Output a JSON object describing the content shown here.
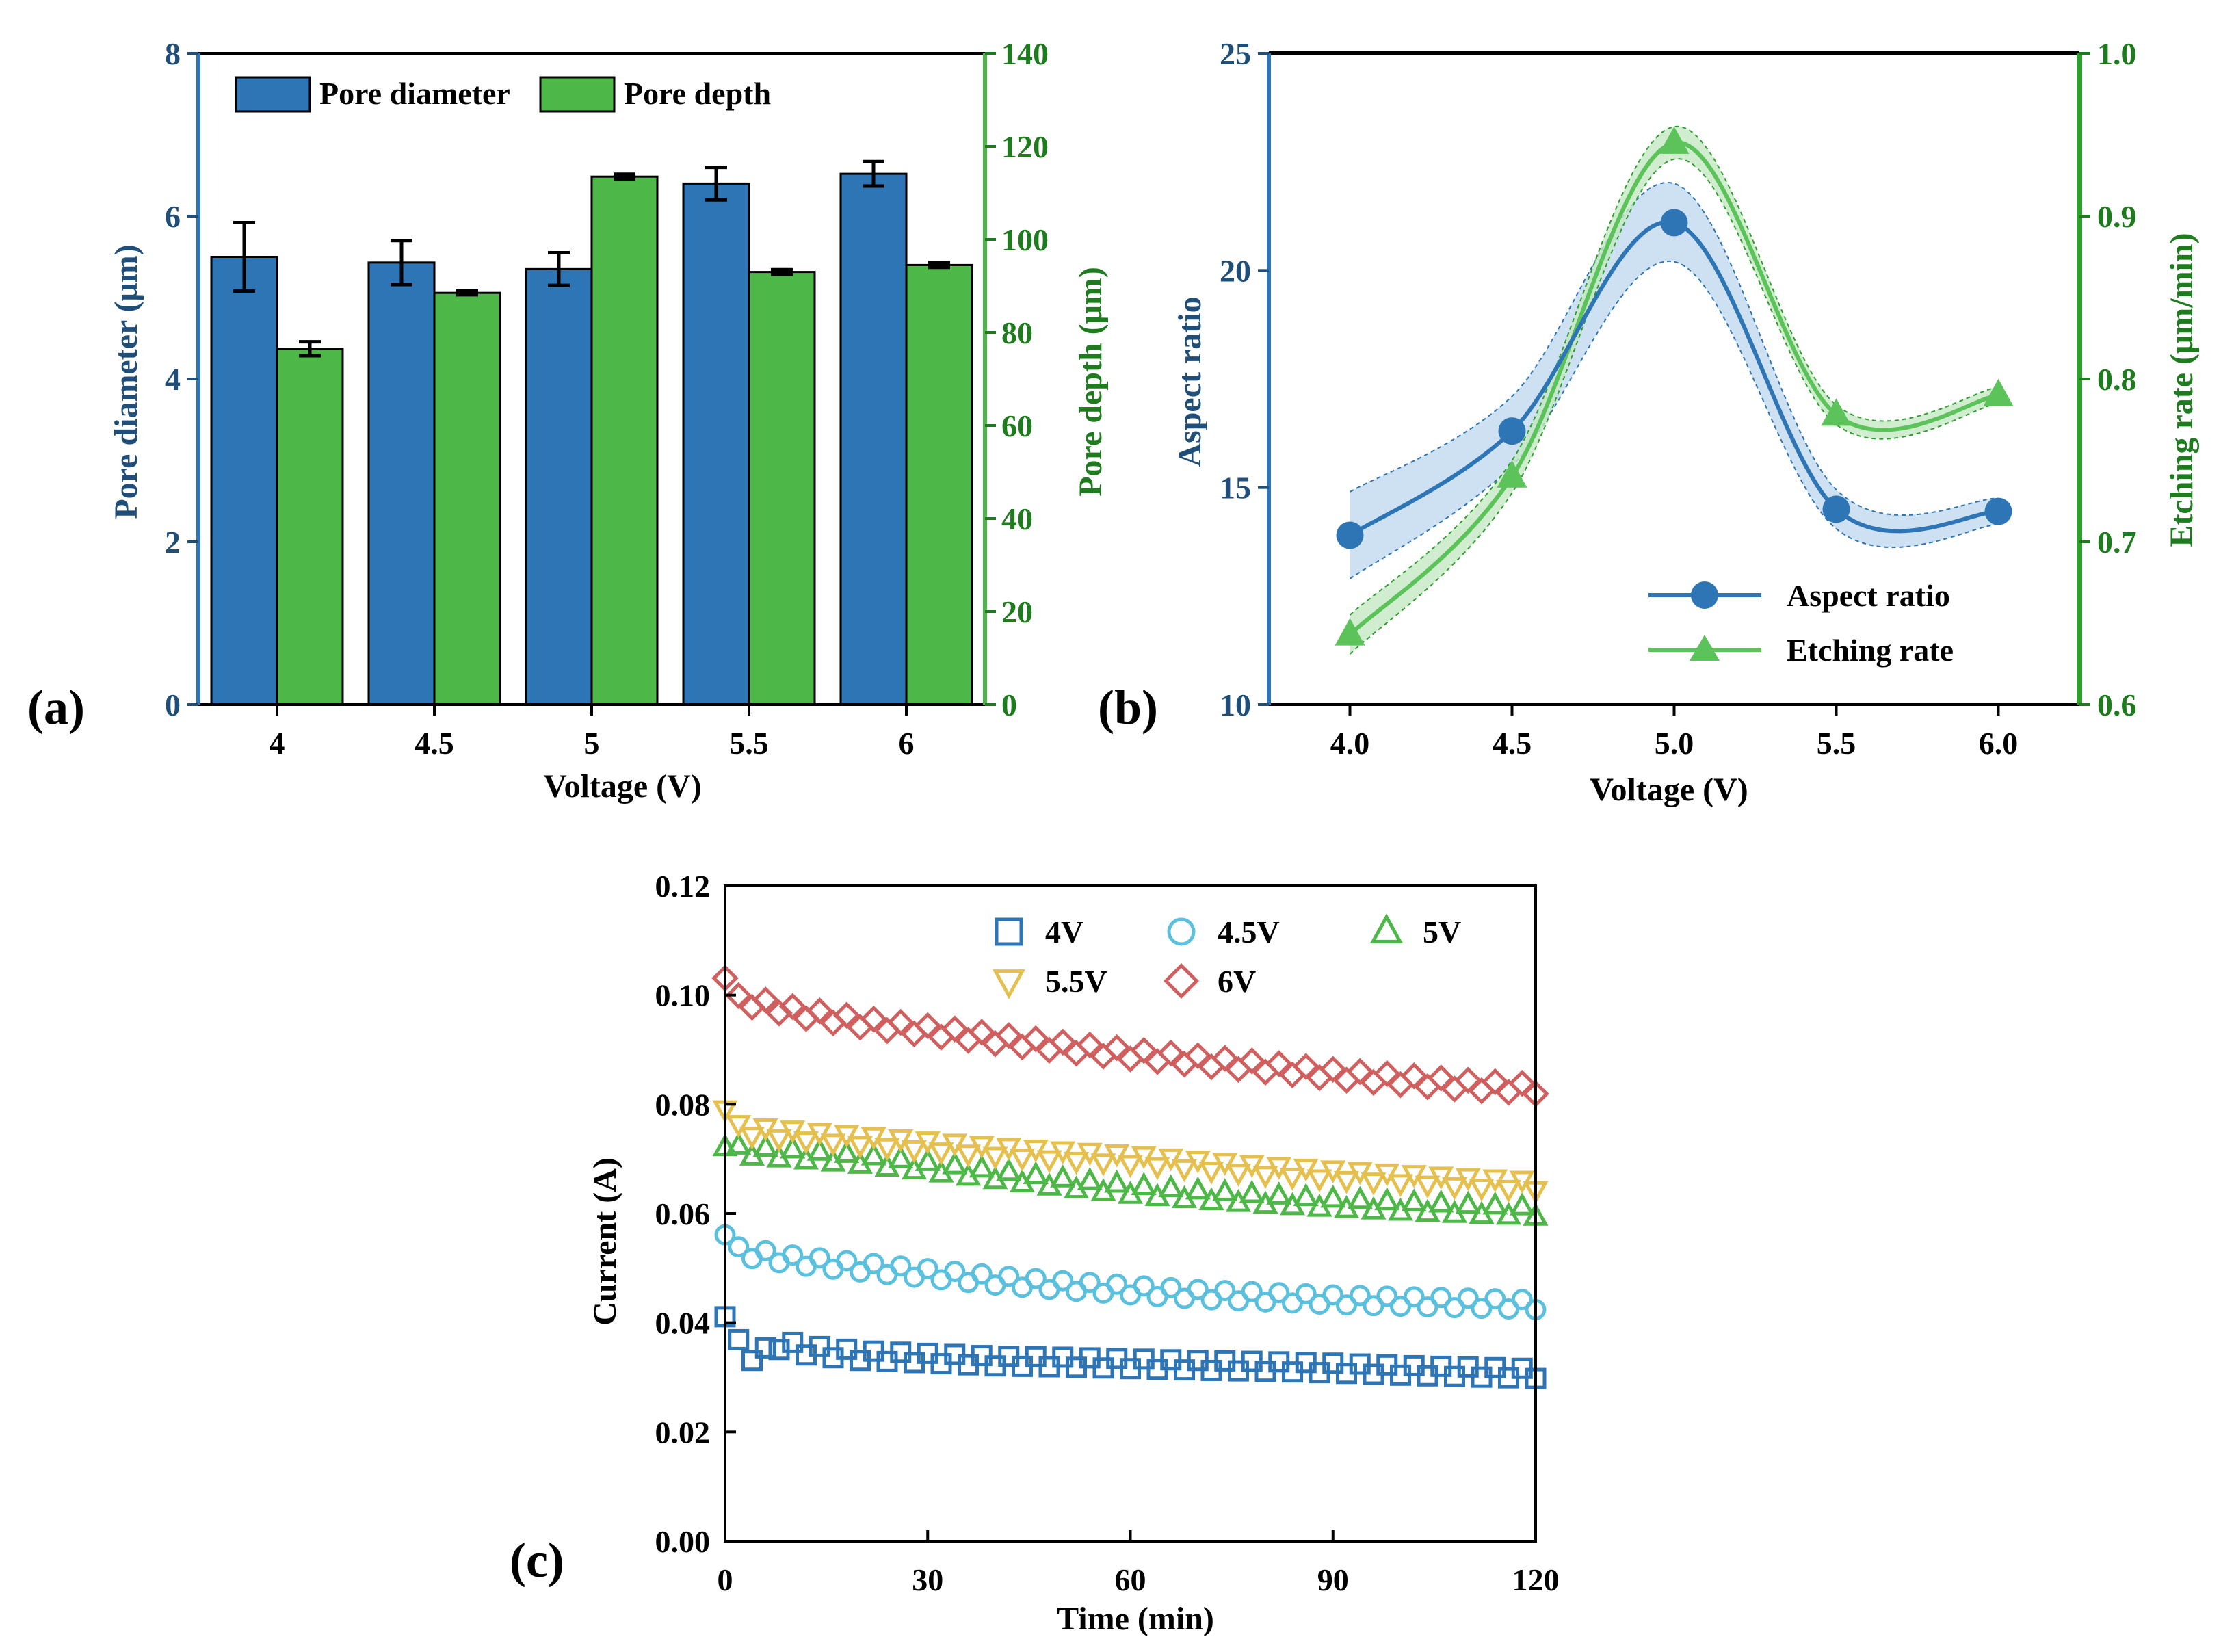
{
  "colors": {
    "blue": "#2e75b6",
    "green": "#4db848",
    "darkgreen": "#1e7b1e",
    "navy": "#1f4e79",
    "lightblue": "#5bc0de",
    "yellow": "#e5c04f",
    "red": "#d06060",
    "black": "#000000"
  },
  "chart_data": [
    {
      "panel_label": "(a)",
      "type": "bar",
      "title": "",
      "xlabel": "Voltage (V)",
      "ylabel": "Pore diameter (μm)",
      "y2label": "Pore depth (μm)",
      "categories": [
        "4",
        "4.5",
        "5",
        "5.5",
        "6"
      ],
      "ylim": [
        0,
        8
      ],
      "y2lim": [
        0,
        140
      ],
      "yticks": [
        "0",
        "2",
        "4",
        "6",
        "8"
      ],
      "y2ticks": [
        "0",
        "20",
        "40",
        "60",
        "80",
        "100",
        "120",
        "140"
      ],
      "legend_position": "top-left",
      "series": [
        {
          "name": "Pore diameter",
          "axis": "left",
          "values": [
            5.5,
            5.43,
            5.35,
            6.4,
            6.52
          ],
          "errors": [
            0.42,
            0.27,
            0.2,
            0.2,
            0.15
          ]
        },
        {
          "name": "Pore depth",
          "axis": "right",
          "values": [
            76.5,
            88.5,
            113.5,
            93,
            94.5
          ],
          "errors": [
            1.5,
            0.4,
            0.5,
            0.5,
            0.5
          ]
        }
      ]
    },
    {
      "panel_label": "(b)",
      "type": "line",
      "title": "",
      "xlabel": "Voltage (V)",
      "ylabel": "Aspect ratio",
      "y2label": "Etching rate (μm/min)",
      "x": [
        4.0,
        4.5,
        5.0,
        5.5,
        6.0
      ],
      "xticks": [
        "4.0",
        "4.5",
        "5.0",
        "5.5",
        "6.0"
      ],
      "ylim": [
        10,
        25
      ],
      "y2lim": [
        0.6,
        1.0
      ],
      "yticks": [
        "10",
        "15",
        "20",
        "25"
      ],
      "y2ticks": [
        "0.6",
        "0.7",
        "0.8",
        "0.9",
        "1.0"
      ],
      "legend_position": "bottom-right",
      "series": [
        {
          "name": "Aspect ratio",
          "axis": "left",
          "values": [
            13.9,
            16.3,
            21.1,
            14.5,
            14.45
          ]
        },
        {
          "name": "Etching rate",
          "axis": "right",
          "values": [
            0.643,
            0.74,
            0.945,
            0.778,
            0.79
          ]
        }
      ]
    },
    {
      "panel_label": "(c)",
      "type": "scatter",
      "title": "",
      "xlabel": "Time (min)",
      "ylabel": "Current (A)",
      "xlim": [
        0,
        120
      ],
      "ylim": [
        0,
        0.12
      ],
      "xticks": [
        "0",
        "30",
        "60",
        "90",
        "120"
      ],
      "yticks": [
        "0.00",
        "0.02",
        "0.04",
        "0.06",
        "0.08",
        "0.10",
        "0.12"
      ],
      "legend_position": "top-right",
      "series": [
        {
          "name": "4V",
          "x": [
            0,
            2,
            4,
            6,
            8,
            12,
            20,
            30,
            40,
            50,
            60,
            70,
            80,
            90,
            100,
            110,
            120
          ],
          "values": [
            0.042,
            0.036,
            0.034,
            0.0345,
            0.036,
            0.035,
            0.034,
            0.0335,
            0.033,
            0.0328,
            0.0325,
            0.0322,
            0.032,
            0.0317,
            0.0313,
            0.031,
            0.0307
          ]
        },
        {
          "name": "4.5V",
          "x": [
            0,
            2,
            5,
            10,
            20,
            30,
            40,
            50,
            60,
            70,
            80,
            90,
            100,
            110,
            120
          ],
          "values": [
            0.057,
            0.053,
            0.0525,
            0.0515,
            0.0502,
            0.049,
            0.0478,
            0.0468,
            0.046,
            0.0452,
            0.0447,
            0.0442,
            0.0439,
            0.0436,
            0.0433
          ]
        },
        {
          "name": "5V",
          "x": [
            0,
            2,
            5,
            10,
            20,
            30,
            40,
            50,
            60,
            70,
            80,
            90,
            100,
            110,
            120
          ],
          "values": [
            0.073,
            0.0715,
            0.0712,
            0.0708,
            0.0698,
            0.0685,
            0.067,
            0.0655,
            0.0643,
            0.0633,
            0.0625,
            0.0618,
            0.0612,
            0.0607,
            0.0603
          ]
        },
        {
          "name": "5.5V",
          "x": [
            0,
            2,
            5,
            10,
            20,
            30,
            40,
            50,
            60,
            70,
            80,
            90,
            100,
            110,
            120
          ],
          "values": [
            0.08,
            0.0755,
            0.075,
            0.0745,
            0.0735,
            0.0725,
            0.0715,
            0.0707,
            0.07,
            0.069,
            0.068,
            0.0672,
            0.0665,
            0.0658,
            0.0652
          ]
        },
        {
          "name": "6V",
          "x": [
            0,
            2,
            5,
            10,
            20,
            30,
            40,
            50,
            60,
            70,
            80,
            90,
            100,
            110,
            120
          ],
          "values": [
            0.104,
            0.099,
            0.0985,
            0.097,
            0.095,
            0.0935,
            0.092,
            0.0905,
            0.0892,
            0.088,
            0.0868,
            0.0855,
            0.0845,
            0.0835,
            0.0828
          ]
        }
      ]
    }
  ]
}
